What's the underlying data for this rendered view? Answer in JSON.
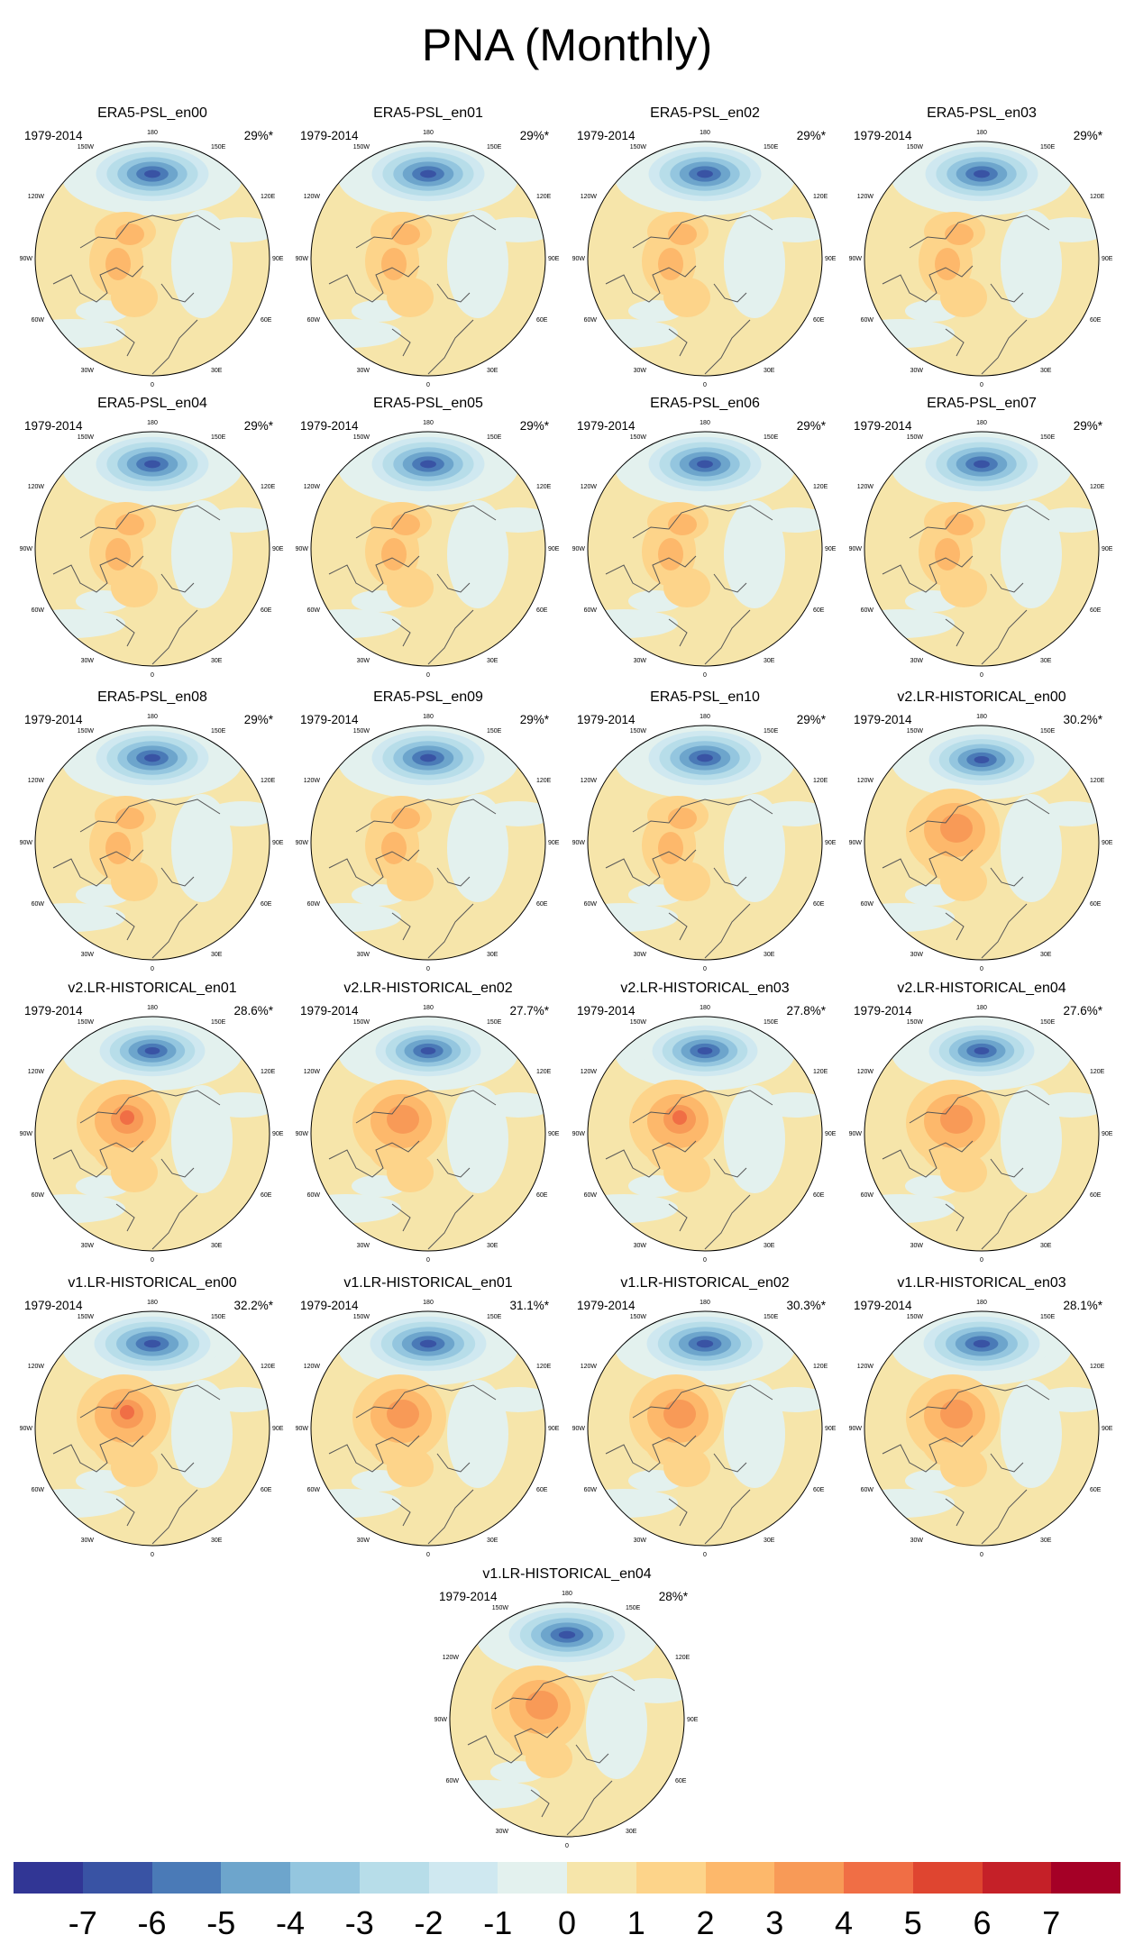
{
  "title": "PNA (Monthly)",
  "panels": [
    {
      "name": "ERA5-PSL_en00",
      "period": "1979-2014",
      "pct": "29%*"
    },
    {
      "name": "ERA5-PSL_en01",
      "period": "1979-2014",
      "pct": "29%*"
    },
    {
      "name": "ERA5-PSL_en02",
      "period": "1979-2014",
      "pct": "29%*"
    },
    {
      "name": "ERA5-PSL_en03",
      "period": "1979-2014",
      "pct": "29%*"
    },
    {
      "name": "ERA5-PSL_en04",
      "period": "1979-2014",
      "pct": "29%*"
    },
    {
      "name": "ERA5-PSL_en05",
      "period": "1979-2014",
      "pct": "29%*"
    },
    {
      "name": "ERA5-PSL_en06",
      "period": "1979-2014",
      "pct": "29%*"
    },
    {
      "name": "ERA5-PSL_en07",
      "period": "1979-2014",
      "pct": "29%*"
    },
    {
      "name": "ERA5-PSL_en08",
      "period": "1979-2014",
      "pct": "29%*"
    },
    {
      "name": "ERA5-PSL_en09",
      "period": "1979-2014",
      "pct": "29%*"
    },
    {
      "name": "ERA5-PSL_en10",
      "period": "1979-2014",
      "pct": "29%*"
    },
    {
      "name": "v2.LR-HISTORICAL_en00",
      "period": "1979-2014",
      "pct": "30.2%*"
    },
    {
      "name": "v2.LR-HISTORICAL_en01",
      "period": "1979-2014",
      "pct": "28.6%*"
    },
    {
      "name": "v2.LR-HISTORICAL_en02",
      "period": "1979-2014",
      "pct": "27.7%*"
    },
    {
      "name": "v2.LR-HISTORICAL_en03",
      "period": "1979-2014",
      "pct": "27.8%*"
    },
    {
      "name": "v2.LR-HISTORICAL_en04",
      "period": "1979-2014",
      "pct": "27.6%*"
    },
    {
      "name": "v1.LR-HISTORICAL_en00",
      "period": "1979-2014",
      "pct": "32.2%*"
    },
    {
      "name": "v1.LR-HISTORICAL_en01",
      "period": "1979-2014",
      "pct": "31.1%*"
    },
    {
      "name": "v1.LR-HISTORICAL_en02",
      "period": "1979-2014",
      "pct": "30.3%*"
    },
    {
      "name": "v1.LR-HISTORICAL_en03",
      "period": "1979-2014",
      "pct": "28.1%*"
    },
    {
      "name": "v1.LR-HISTORICAL_en04",
      "period": "1979-2014",
      "pct": "28%*"
    }
  ],
  "lon_labels": {
    "lon180": "180",
    "lon150w": "150W",
    "lon150e": "150E",
    "lon120w": "120W",
    "lon120e": "120E",
    "lon90w": "90W",
    "lon90e": "90E",
    "lon60w": "60W",
    "lon60e": "60E",
    "lon30w": "30W",
    "lon30e": "30E",
    "lon0": "0"
  },
  "colorbar": {
    "colors": [
      "#313695",
      "#3953a4",
      "#4a7ab7",
      "#6da5cc",
      "#94c6df",
      "#b7dde9",
      "#cfe8f0",
      "#e3f1ee",
      "#f6e5aa",
      "#fdd48a",
      "#fdb86b",
      "#f89a57",
      "#f06e45",
      "#df4530",
      "#c52028",
      "#a50026"
    ],
    "labels": [
      "-7",
      "-6",
      "-5",
      "-4",
      "-3",
      "-2",
      "-1",
      "0",
      "1",
      "2",
      "3",
      "4",
      "5",
      "6",
      "7"
    ]
  }
}
